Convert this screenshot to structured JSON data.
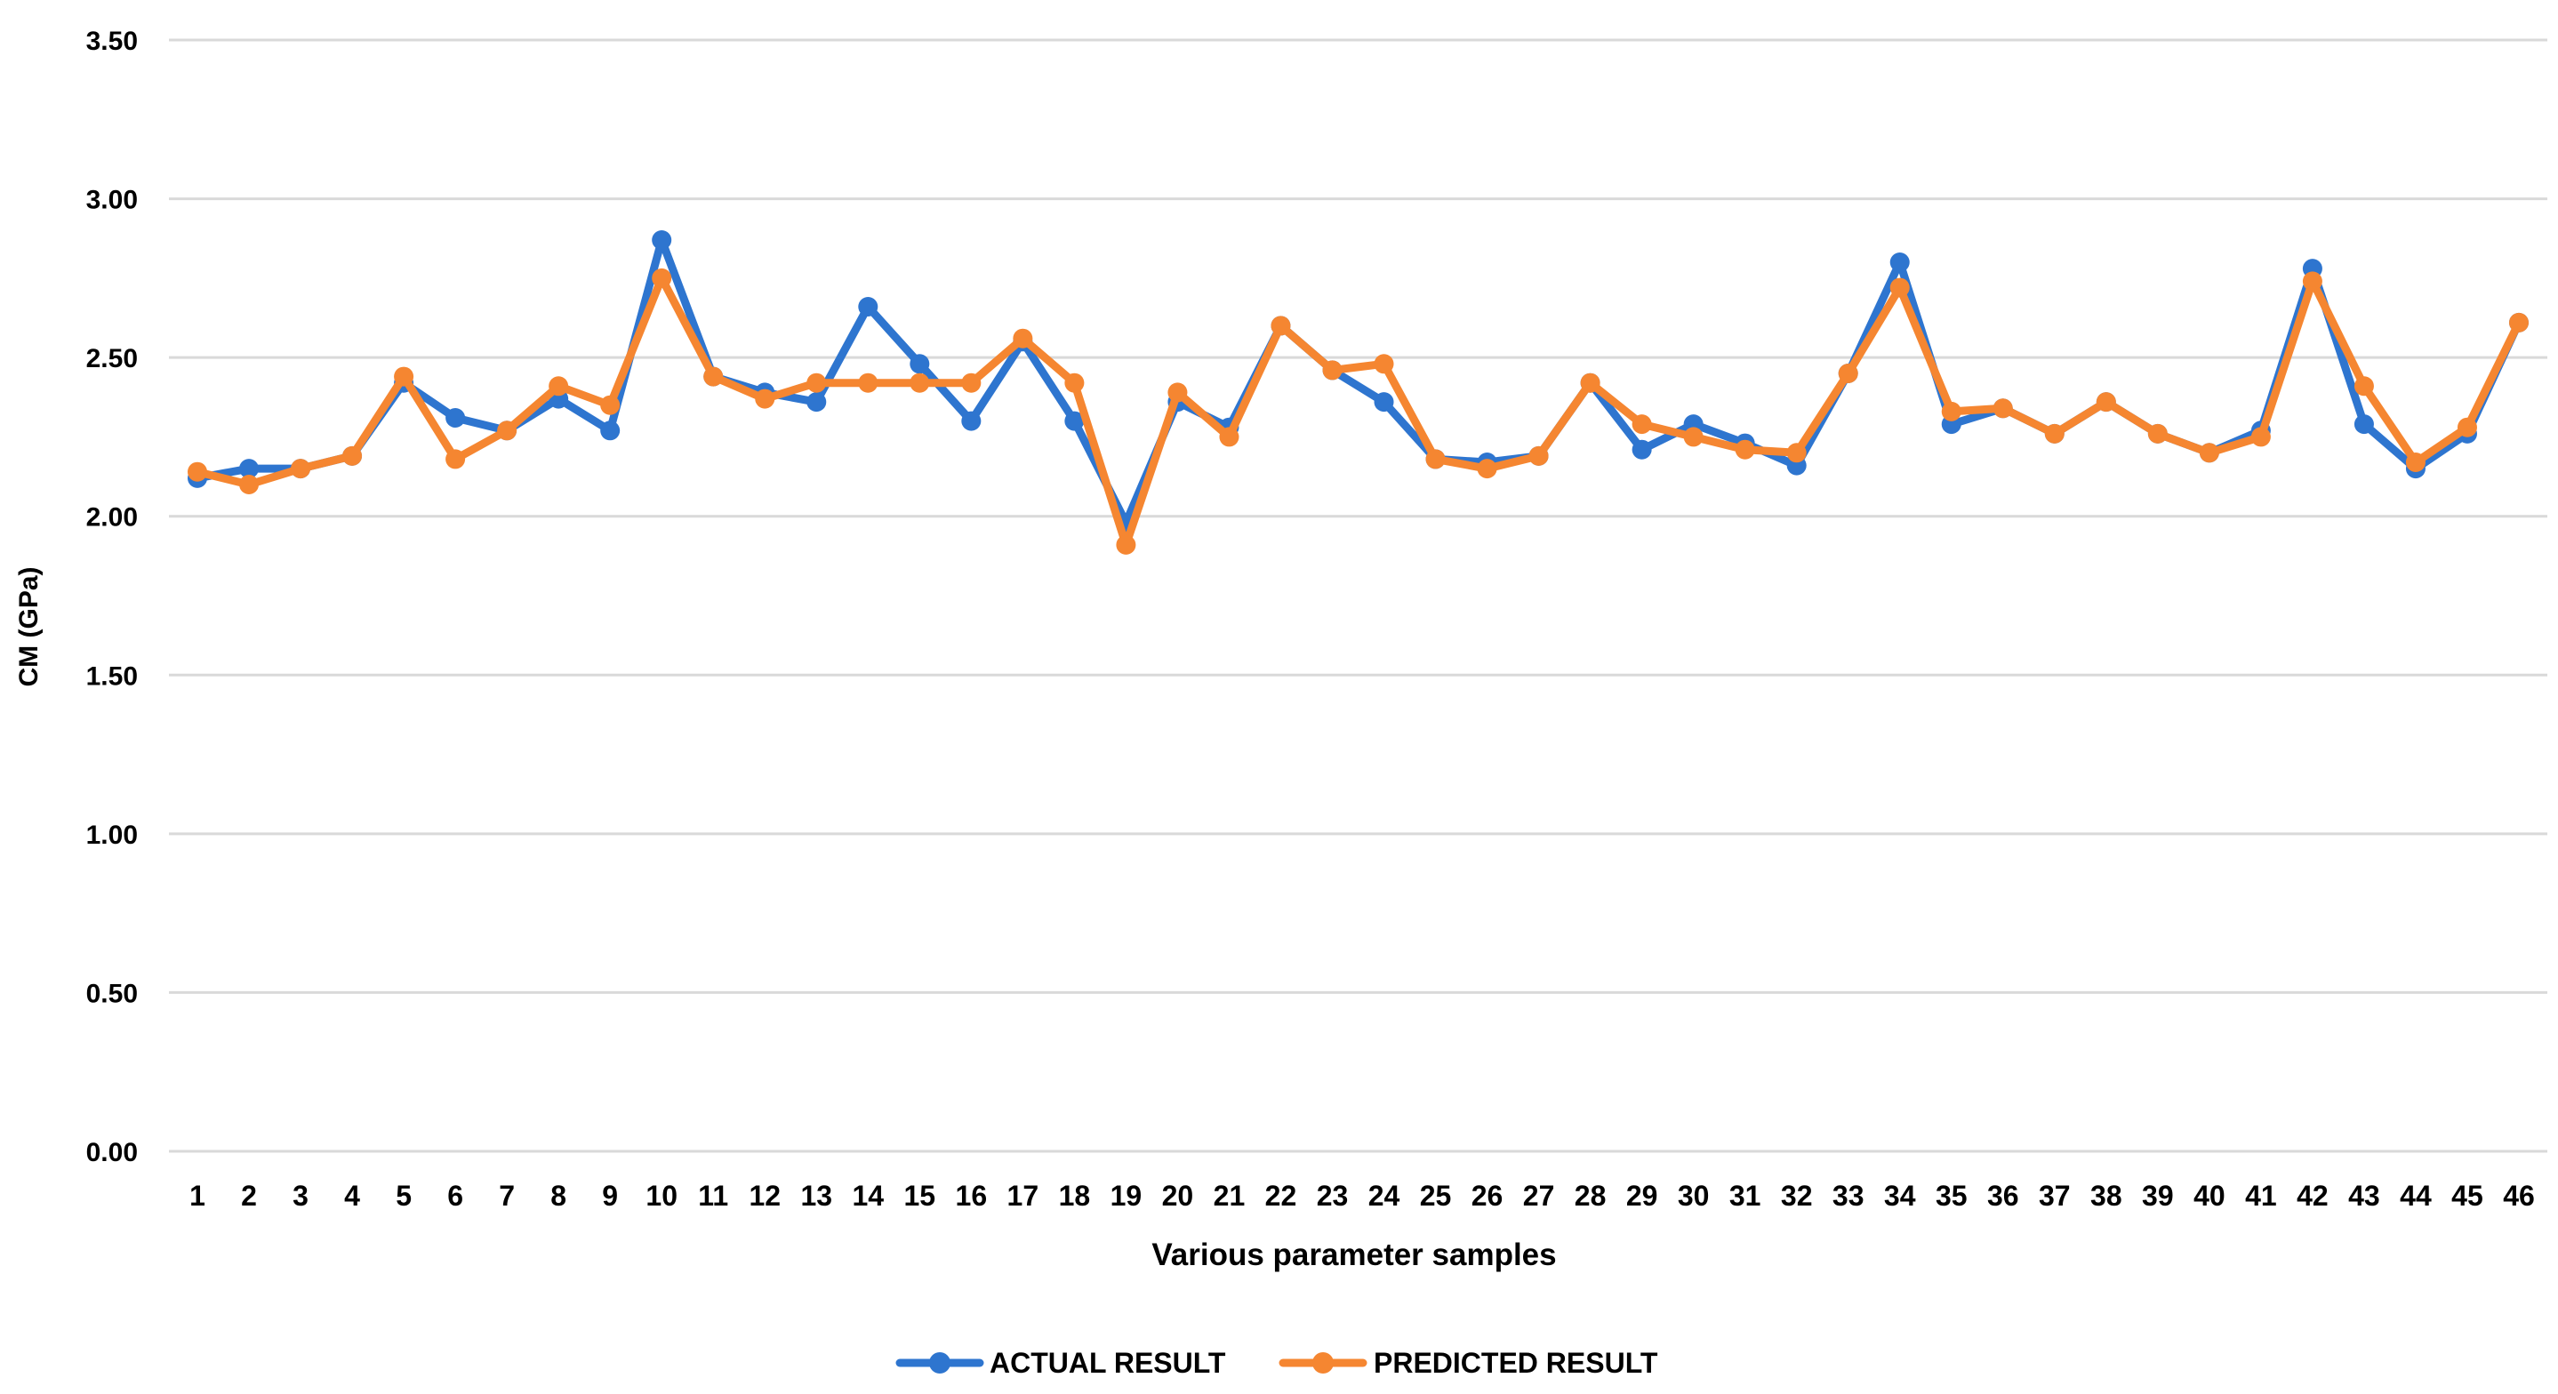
{
  "chart_data": {
    "type": "line",
    "title": "",
    "xlabel": "Various parameter samples",
    "ylabel": "CM (GPa)",
    "ylim": [
      0,
      3.5
    ],
    "yticks": [
      "0.00",
      "0.50",
      "1.00",
      "1.50",
      "2.00",
      "2.50",
      "3.00",
      "3.50"
    ],
    "grid": "horizontal",
    "legend_position": "bottom",
    "categories": [
      "1",
      "2",
      "3",
      "4",
      "5",
      "6",
      "7",
      "8",
      "9",
      "10",
      "11",
      "12",
      "13",
      "14",
      "15",
      "16",
      "17",
      "18",
      "19",
      "20",
      "21",
      "22",
      "23",
      "24",
      "25",
      "26",
      "27",
      "28",
      "29",
      "30",
      "31",
      "32",
      "33",
      "34",
      "35",
      "36",
      "37",
      "38",
      "39",
      "40",
      "41",
      "42",
      "43",
      "44",
      "45",
      "46"
    ],
    "series": [
      {
        "name": "ACTUAL RESULT",
        "color": "#2E75CF",
        "values": [
          2.12,
          2.15,
          2.15,
          2.19,
          2.42,
          2.31,
          2.27,
          2.37,
          2.27,
          2.87,
          2.44,
          2.39,
          2.36,
          2.66,
          2.48,
          2.3,
          2.55,
          2.3,
          1.98,
          2.36,
          2.28,
          2.6,
          2.46,
          2.36,
          2.18,
          2.17,
          2.19,
          2.42,
          2.21,
          2.29,
          2.23,
          2.16,
          2.45,
          2.8,
          2.29,
          2.34,
          2.26,
          2.36,
          2.26,
          2.2,
          2.27,
          2.78,
          2.29,
          2.15,
          2.26,
          2.61
        ]
      },
      {
        "name": "PREDICTED RESULT",
        "color": "#F58631",
        "values": [
          2.14,
          2.1,
          2.15,
          2.19,
          2.44,
          2.18,
          2.27,
          2.41,
          2.35,
          2.75,
          2.44,
          2.37,
          2.42,
          2.42,
          2.42,
          2.42,
          2.56,
          2.42,
          1.91,
          2.39,
          2.25,
          2.6,
          2.46,
          2.48,
          2.18,
          2.15,
          2.19,
          2.42,
          2.29,
          2.25,
          2.21,
          2.2,
          2.45,
          2.72,
          2.33,
          2.34,
          2.26,
          2.36,
          2.26,
          2.2,
          2.25,
          2.74,
          2.41,
          2.17,
          2.28,
          2.61
        ]
      }
    ]
  }
}
